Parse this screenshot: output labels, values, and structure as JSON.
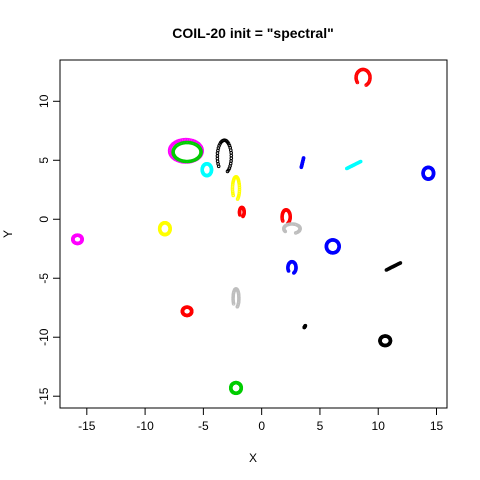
{
  "chart_data": {
    "type": "scatter",
    "title": "COIL-20 init = \"spectral\"",
    "xlabel": "X",
    "ylabel": "Y",
    "xlim": [
      -17.3,
      15.9
    ],
    "ylim": [
      -16.0,
      13.5
    ],
    "xticks": [
      -15,
      -10,
      -5,
      0,
      5,
      10,
      15
    ],
    "yticks": [
      -15,
      -10,
      -5,
      0,
      5,
      10
    ],
    "grid": false,
    "legend": "none",
    "clusters": [
      {
        "color": "#ff00ff",
        "shape": "ring",
        "cx": -15.8,
        "cy": -1.7,
        "rx": 0.4,
        "ry": 0.35
      },
      {
        "color": "#ffff00",
        "shape": "ring",
        "cx": -8.3,
        "cy": -0.8,
        "rx": 0.45,
        "ry": 0.5
      },
      {
        "color": "#ff0000",
        "shape": "ring",
        "cx": -6.4,
        "cy": -7.8,
        "rx": 0.4,
        "ry": 0.35
      },
      {
        "color": "#00cd00",
        "shape": "ring",
        "cx": -2.2,
        "cy": -14.3,
        "rx": 0.45,
        "ry": 0.45
      },
      {
        "color": "#bebebe",
        "shape": "arc",
        "cx": -2.2,
        "cy": -6.7,
        "rx": 0.25,
        "ry": 0.8
      },
      {
        "color": "#ff00ff",
        "shape": "ring",
        "cx": -6.5,
        "cy": 5.8,
        "rx": 1.4,
        "ry": 0.95
      },
      {
        "color": "#00cd00",
        "shape": "ring",
        "cx": -6.4,
        "cy": 5.7,
        "rx": 1.2,
        "ry": 0.8
      },
      {
        "color": "#00ffff",
        "shape": "ring",
        "cx": -4.7,
        "cy": 4.2,
        "rx": 0.4,
        "ry": 0.5
      },
      {
        "color": "#000000",
        "shape": "arc",
        "cx": -3.2,
        "cy": 5.3,
        "rx": 0.6,
        "ry": 1.4
      },
      {
        "color": "#ffff00",
        "shape": "arc",
        "cx": -2.2,
        "cy": 2.6,
        "rx": 0.3,
        "ry": 1.0
      },
      {
        "color": "#ff0000",
        "shape": "arc",
        "cx": -1.7,
        "cy": 0.6,
        "rx": 0.2,
        "ry": 0.4
      },
      {
        "color": "#ff0000",
        "shape": "arc",
        "cx": 2.1,
        "cy": 0.2,
        "rx": 0.35,
        "ry": 0.6
      },
      {
        "color": "#bebebe",
        "shape": "arc",
        "cx": 2.6,
        "cy": -0.8,
        "rx": 0.7,
        "ry": 0.4
      },
      {
        "color": "#0000ff",
        "shape": "arc",
        "cx": 2.6,
        "cy": -4.1,
        "rx": 0.35,
        "ry": 0.5
      },
      {
        "color": "#0000ff",
        "shape": "ring",
        "cx": 6.1,
        "cy": -2.3,
        "rx": 0.55,
        "ry": 0.55
      },
      {
        "color": "#0000ff",
        "shape": "dash",
        "cx": 3.5,
        "cy": 4.8,
        "rx": 0.1,
        "ry": 0.4
      },
      {
        "color": "#00ffff",
        "shape": "dash",
        "cx": 7.9,
        "cy": 4.6,
        "rx": 0.6,
        "ry": 0.3
      },
      {
        "color": "#ff0000",
        "shape": "arc",
        "cx": 8.7,
        "cy": 12.0,
        "rx": 0.6,
        "ry": 0.7
      },
      {
        "color": "#0000ff",
        "shape": "ring",
        "cx": 14.3,
        "cy": 3.9,
        "rx": 0.45,
        "ry": 0.5
      },
      {
        "color": "#000000",
        "shape": "dash",
        "cx": 11.3,
        "cy": -4.0,
        "rx": 0.6,
        "ry": 0.3
      },
      {
        "color": "#000000",
        "shape": "dash",
        "cx": 3.7,
        "cy": -9.1,
        "rx": 0.05,
        "ry": 0.08
      },
      {
        "color": "#000000",
        "shape": "ring",
        "cx": 10.6,
        "cy": -10.3,
        "rx": 0.45,
        "ry": 0.4
      }
    ]
  }
}
